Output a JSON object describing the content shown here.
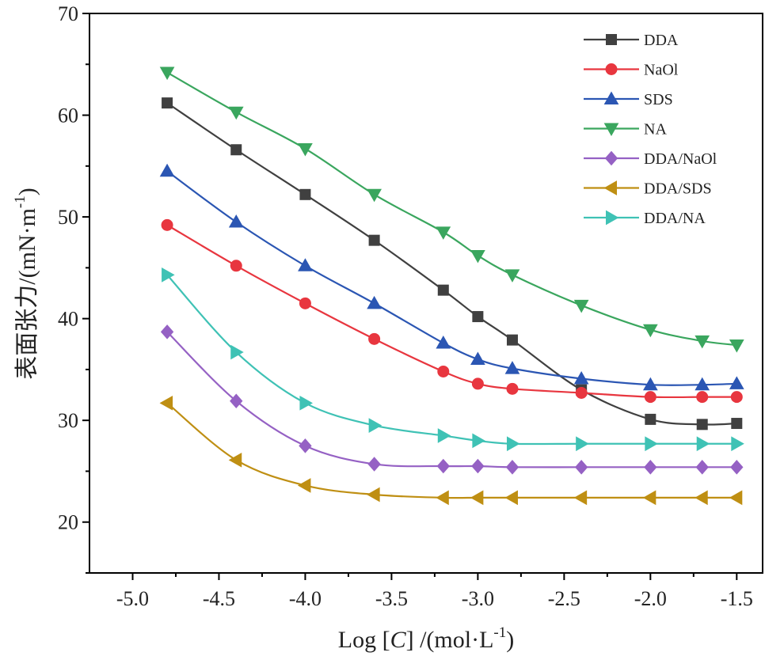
{
  "chart_data": {
    "type": "line",
    "xlabel_parts": [
      "Log [",
      "C",
      "] /(mol·L",
      "-1",
      ")"
    ],
    "ylabel_parts": [
      "表面张力/(mN·m",
      "-1",
      ")"
    ],
    "xlim": [
      -5.25,
      -1.35
    ],
    "ylim": [
      15,
      70
    ],
    "xticks": [
      -5.0,
      -4.5,
      -4.0,
      -3.5,
      -3.0,
      -2.5,
      -2.0,
      -1.5
    ],
    "xtick_labels": [
      "-5.0",
      "-4.5",
      "-4.0",
      "-3.5",
      "-3.0",
      "-2.5",
      "-2.0",
      "-1.5"
    ],
    "yticks": [
      20,
      30,
      40,
      50,
      60,
      70
    ],
    "ytick_labels": [
      "20",
      "30",
      "40",
      "50",
      "60",
      "70"
    ],
    "legend_position": "top-right",
    "grid": false,
    "x": [
      -4.8,
      -4.4,
      -4.0,
      -3.6,
      -3.2,
      -3.0,
      -2.8,
      -2.4,
      -2.0,
      -1.7,
      -1.5
    ],
    "series": [
      {
        "name": "DDA",
        "color": "#404040",
        "marker": "square",
        "values": [
          61.2,
          56.6,
          52.2,
          47.7,
          42.8,
          40.2,
          37.9,
          33.0,
          30.1,
          29.6,
          29.7
        ]
      },
      {
        "name": "NaOl",
        "color": "#e8363f",
        "marker": "circle",
        "values": [
          49.2,
          45.2,
          41.5,
          38.0,
          34.8,
          33.6,
          33.1,
          32.7,
          32.3,
          32.3,
          32.3
        ]
      },
      {
        "name": "SDS",
        "color": "#2b56b3",
        "marker": "triangle-up",
        "values": [
          54.5,
          49.5,
          45.2,
          41.5,
          37.6,
          36.0,
          35.1,
          34.1,
          33.5,
          33.5,
          33.6
        ]
      },
      {
        "name": "NA",
        "color": "#3aa65e",
        "marker": "triangle-down",
        "values": [
          64.2,
          60.3,
          56.7,
          52.2,
          48.5,
          46.2,
          44.3,
          41.3,
          38.9,
          37.8,
          37.4
        ]
      },
      {
        "name": "DDA/NaOl",
        "color": "#9561c4",
        "marker": "diamond",
        "values": [
          38.7,
          31.9,
          27.5,
          25.7,
          25.5,
          25.5,
          25.4,
          25.4,
          25.4,
          25.4,
          25.4
        ]
      },
      {
        "name": "DDA/SDS",
        "color": "#bf8f13",
        "marker": "triangle-left",
        "values": [
          31.7,
          26.1,
          23.6,
          22.7,
          22.4,
          22.4,
          22.4,
          22.4,
          22.4,
          22.4,
          22.4
        ]
      },
      {
        "name": "DDA/NA",
        "color": "#3fc2b5",
        "marker": "triangle-right",
        "values": [
          44.3,
          36.7,
          31.7,
          29.5,
          28.5,
          28.0,
          27.7,
          27.7,
          27.7,
          27.7,
          27.7
        ]
      }
    ]
  }
}
